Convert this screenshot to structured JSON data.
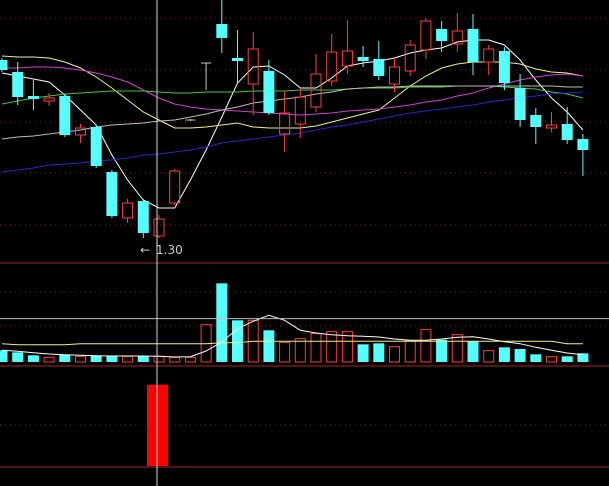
{
  "chart_data": [
    {
      "type": "candlestick",
      "panel": "price",
      "ylim": [
        1.228,
        2.014
      ],
      "grid": true,
      "low_marker": {
        "index": 9,
        "label": "1.30",
        "arrow": "←"
      },
      "colors": {
        "up": "#ff3c3c",
        "down": "#54ffff",
        "flat": "#c8c8c8"
      },
      "candles": [
        {
          "o": 1.834,
          "h": 1.84,
          "l": 1.798,
          "c": 1.804
        },
        {
          "o": 1.798,
          "h": 1.828,
          "l": 1.699,
          "c": 1.723
        },
        {
          "o": 1.726,
          "h": 1.774,
          "l": 1.684,
          "c": 1.717
        },
        {
          "o": 1.711,
          "h": 1.735,
          "l": 1.696,
          "c": 1.72
        },
        {
          "o": 1.726,
          "h": 1.732,
          "l": 1.603,
          "c": 1.609
        },
        {
          "o": 1.609,
          "h": 1.642,
          "l": 1.585,
          "c": 1.63
        },
        {
          "o": 1.633,
          "h": 1.639,
          "l": 1.51,
          "c": 1.516
        },
        {
          "o": 1.498,
          "h": 1.504,
          "l": 1.36,
          "c": 1.366
        },
        {
          "o": 1.36,
          "h": 1.417,
          "l": 1.345,
          "c": 1.405
        },
        {
          "o": 1.411,
          "h": 1.417,
          "l": 1.3,
          "c": 1.315
        },
        {
          "o": 1.306,
          "h": 1.369,
          "l": 1.3,
          "c": 1.357
        },
        {
          "o": 1.405,
          "h": 1.507,
          "l": 1.399,
          "c": 1.501
        },
        {
          "o": 1.654,
          "h": 1.657,
          "l": 1.651,
          "c": 1.654
        },
        {
          "o": 1.825,
          "h": 1.825,
          "l": 1.744,
          "c": 1.825
        },
        {
          "o": 1.942,
          "h": 2.014,
          "l": 1.855,
          "c": 1.9
        },
        {
          "o": 1.84,
          "h": 1.924,
          "l": 1.762,
          "c": 1.831
        },
        {
          "o": 1.762,
          "h": 1.918,
          "l": 1.669,
          "c": 1.867
        },
        {
          "o": 1.801,
          "h": 1.834,
          "l": 1.669,
          "c": 1.675
        },
        {
          "o": 1.612,
          "h": 1.741,
          "l": 1.558,
          "c": 1.675
        },
        {
          "o": 1.642,
          "h": 1.75,
          "l": 1.6,
          "c": 1.723
        },
        {
          "o": 1.693,
          "h": 1.852,
          "l": 1.678,
          "c": 1.792
        },
        {
          "o": 1.771,
          "h": 1.912,
          "l": 1.756,
          "c": 1.858
        },
        {
          "o": 1.816,
          "h": 1.954,
          "l": 1.792,
          "c": 1.861
        },
        {
          "o": 1.843,
          "h": 1.876,
          "l": 1.813,
          "c": 1.831
        },
        {
          "o": 1.837,
          "h": 1.891,
          "l": 1.774,
          "c": 1.786
        },
        {
          "o": 1.762,
          "h": 1.84,
          "l": 1.738,
          "c": 1.813
        },
        {
          "o": 1.801,
          "h": 1.894,
          "l": 1.786,
          "c": 1.879
        },
        {
          "o": 1.864,
          "h": 1.96,
          "l": 1.837,
          "c": 1.951
        },
        {
          "o": 1.927,
          "h": 1.951,
          "l": 1.858,
          "c": 1.891
        },
        {
          "o": 1.882,
          "h": 1.975,
          "l": 1.858,
          "c": 1.921
        },
        {
          "o": 1.927,
          "h": 1.972,
          "l": 1.789,
          "c": 1.828
        },
        {
          "o": 1.828,
          "h": 1.879,
          "l": 1.789,
          "c": 1.867
        },
        {
          "o": 1.861,
          "h": 1.873,
          "l": 1.744,
          "c": 1.765
        },
        {
          "o": 1.75,
          "h": 1.792,
          "l": 1.633,
          "c": 1.654
        },
        {
          "o": 1.669,
          "h": 1.69,
          "l": 1.582,
          "c": 1.633
        },
        {
          "o": 1.63,
          "h": 1.678,
          "l": 1.618,
          "c": 1.639
        },
        {
          "o": 1.642,
          "h": 1.693,
          "l": 1.582,
          "c": 1.594
        },
        {
          "o": 1.597,
          "h": 1.612,
          "l": 1.486,
          "c": 1.564
        }
      ],
      "moving_averages": [
        {
          "color": "#ffffff",
          "values": [
            1.795,
            1.786,
            1.777,
            1.768,
            1.729,
            1.684,
            1.639,
            1.549,
            1.474,
            1.414,
            1.39,
            1.39,
            1.474,
            1.564,
            1.663,
            1.765,
            1.813,
            1.816,
            1.789,
            1.75,
            1.75,
            1.78,
            1.816,
            1.825,
            1.831,
            1.84,
            1.855,
            1.864,
            1.87,
            1.888,
            1.894,
            1.894,
            1.879,
            1.834,
            1.774,
            1.72,
            1.678,
            1.624
          ]
        },
        {
          "color": "#f0f08c",
          "values": [
            1.846,
            1.843,
            1.843,
            1.84,
            1.828,
            1.81,
            1.783,
            1.75,
            1.714,
            1.678,
            1.654,
            1.63,
            1.63,
            1.633,
            1.639,
            1.645,
            1.633,
            1.63,
            1.63,
            1.63,
            1.636,
            1.648,
            1.66,
            1.672,
            1.684,
            1.72,
            1.756,
            1.786,
            1.81,
            1.822,
            1.828,
            1.828,
            1.828,
            1.822,
            1.807,
            1.798,
            1.795,
            1.786
          ]
        },
        {
          "color": "#d040d0",
          "values": [
            1.81,
            1.81,
            1.813,
            1.813,
            1.81,
            1.804,
            1.795,
            1.783,
            1.768,
            1.744,
            1.72,
            1.702,
            1.693,
            1.687,
            1.684,
            1.681,
            1.678,
            1.675,
            1.672,
            1.669,
            1.672,
            1.675,
            1.681,
            1.684,
            1.687,
            1.693,
            1.699,
            1.708,
            1.714,
            1.726,
            1.735,
            1.75,
            1.762,
            1.774,
            1.783,
            1.789,
            1.792,
            1.786
          ]
        },
        {
          "color": "#40c840",
          "values": [
            1.702,
            1.711,
            1.72,
            1.726,
            1.732,
            1.735,
            1.738,
            1.741,
            1.741,
            1.741,
            1.738,
            1.735,
            1.735,
            1.738,
            1.738,
            1.738,
            1.741,
            1.741,
            1.741,
            1.744,
            1.744,
            1.744,
            1.747,
            1.75,
            1.75,
            1.75,
            1.753,
            1.753,
            1.753,
            1.756,
            1.756,
            1.756,
            1.753,
            1.75,
            1.747,
            1.738,
            1.732,
            1.72
          ]
        },
        {
          "color": "#bcbcbc",
          "values": [
            1.597,
            1.603,
            1.606,
            1.612,
            1.618,
            1.624,
            1.633,
            1.639,
            1.642,
            1.645,
            1.651,
            1.654,
            1.663,
            1.672,
            1.684,
            1.693,
            1.705,
            1.711,
            1.717,
            1.723,
            1.732,
            1.738,
            1.747,
            1.75,
            1.753,
            1.753,
            1.756,
            1.756,
            1.756,
            1.756,
            1.756,
            1.756,
            1.756,
            1.756,
            1.756,
            1.756,
            1.753,
            1.753
          ]
        },
        {
          "color": "#2828c8",
          "values": [
            1.498,
            1.504,
            1.51,
            1.519,
            1.522,
            1.525,
            1.531,
            1.534,
            1.54,
            1.549,
            1.552,
            1.558,
            1.564,
            1.573,
            1.585,
            1.591,
            1.597,
            1.603,
            1.609,
            1.615,
            1.624,
            1.633,
            1.639,
            1.648,
            1.657,
            1.666,
            1.675,
            1.681,
            1.687,
            1.693,
            1.699,
            1.708,
            1.714,
            1.72,
            1.726,
            1.732,
            1.735,
            1.738
          ]
        }
      ]
    },
    {
      "type": "bar",
      "panel": "volume",
      "ylim": [
        0,
        297
      ],
      "grid": true,
      "values": [
        35,
        29,
        20,
        14,
        22,
        17,
        18,
        18,
        17,
        18,
        17,
        14,
        14,
        112,
        236,
        125,
        125,
        95,
        59,
        70,
        85,
        91,
        91,
        53,
        56,
        46,
        64,
        97,
        67,
        82,
        62,
        34,
        44,
        39,
        23,
        16,
        17,
        26
      ],
      "level_line": 130,
      "moving_averages": [
        {
          "color": "#ffffff",
          "values": [
            35,
            32,
            28,
            24,
            22,
            20,
            19,
            18,
            18,
            18,
            17,
            15,
            16,
            33,
            60,
            100,
            122,
            140,
            125,
            95,
            87,
            82,
            79,
            77,
            75,
            69,
            65,
            65,
            69,
            74,
            76,
            69,
            61,
            55,
            44,
            35,
            27,
            22
          ]
        },
        {
          "color": "#f0f08c",
          "values": [
            55,
            52,
            52,
            52,
            52,
            55,
            55,
            55,
            55,
            55,
            55,
            55,
            55,
            55,
            58,
            58,
            62,
            62,
            62,
            62,
            62,
            62,
            62,
            62,
            62,
            62,
            62,
            62,
            62,
            62,
            62,
            62,
            62,
            62,
            62,
            62,
            55,
            55
          ]
        }
      ]
    },
    {
      "type": "bar",
      "panel": "signal",
      "ylim": [
        0,
        1.23
      ],
      "grid": true,
      "color": "#ff0000",
      "bars": [
        {
          "index": 10,
          "value": 1
        }
      ]
    }
  ],
  "crosshair": {
    "index": 10
  }
}
